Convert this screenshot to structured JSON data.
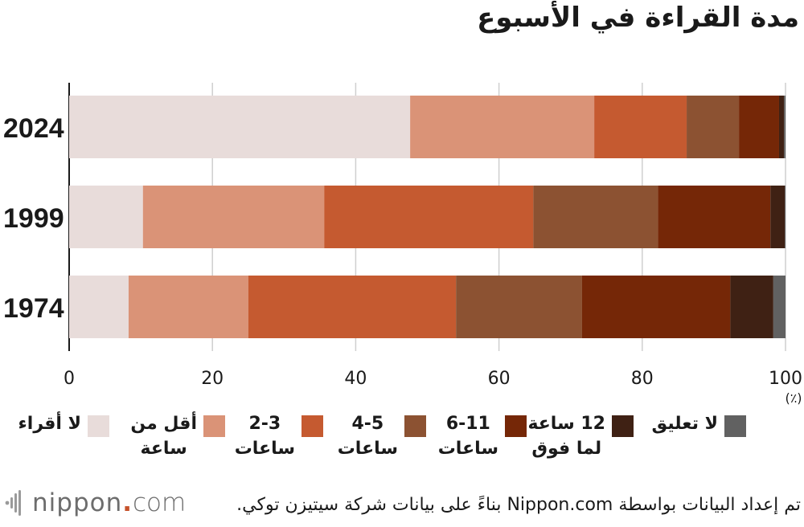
{
  "chart_data": {
    "type": "bar",
    "orientation": "horizontal",
    "stacked": true,
    "title": "مدة القراءة في الأسبوع",
    "categories": [
      "2024",
      "1999",
      "1974"
    ],
    "series": [
      {
        "name": "لا أقراء",
        "label_lines": [
          "لا أقراء"
        ],
        "color": "#e8dcda",
        "values": [
          47.6,
          10.3,
          8.3
        ]
      },
      {
        "name": "أقل من ساعة",
        "label_lines": [
          "أقل من",
          "ساعة"
        ],
        "color": "#da9377",
        "values": [
          25.7,
          25.3,
          16.7
        ]
      },
      {
        "name": "2-3 ساعات",
        "label_lines": [
          "2-3",
          "ساعات"
        ],
        "color": "#c55a30",
        "values": [
          12.9,
          29.2,
          29.0
        ]
      },
      {
        "name": "4-5 ساعات",
        "label_lines": [
          "4-5",
          "ساعات"
        ],
        "color": "#8c5232",
        "values": [
          7.3,
          17.4,
          17.6
        ]
      },
      {
        "name": "6-11 ساعات",
        "label_lines": [
          "6-11",
          "ساعات"
        ],
        "color": "#752707",
        "values": [
          5.6,
          15.7,
          20.7
        ]
      },
      {
        "name": "12 ساعة لما فوق",
        "label_lines": [
          "12 ساعة",
          "لما فوق"
        ],
        "color": "#3f2114",
        "values": [
          0.7,
          2.0,
          6.0
        ]
      },
      {
        "name": "لا تعليق",
        "label_lines": [
          "لا تعليق"
        ],
        "color": "#616161",
        "values": [
          0.2,
          0.1,
          1.7
        ]
      }
    ],
    "xlim": [
      0,
      100
    ],
    "xticks": [
      0,
      20,
      40,
      60,
      80,
      100
    ],
    "xlabel": "(٪)",
    "grid": true,
    "legend_position": "bottom"
  },
  "footer": {
    "brand_name": "nippon",
    "brand_dot": ".",
    "brand_tld": "com",
    "source": "تم إعداد البيانات بواسطة Nippon.com بناءً على بيانات شركة سيتيزن توكي."
  }
}
